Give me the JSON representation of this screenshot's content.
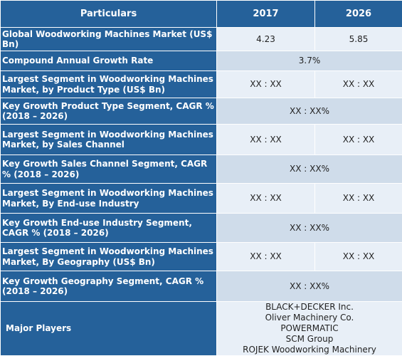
{
  "header": {
    "particulars": "Particulars",
    "year1": "2017",
    "year2": "2026"
  },
  "rows": [
    {
      "label": "Global Woodworking Machines Market (US$ Bn)",
      "v2017": "4.23",
      "v2026": "5.85"
    },
    {
      "label": "Compound Annual Growth Rate",
      "span": "3.7%"
    },
    {
      "label": "Largest Segment in Woodworking Machines Market, by Product Type (US$ Bn)",
      "v2017": "XX : XX",
      "v2026": "XX :  XX"
    },
    {
      "label": "Key Growth Product Type Segment, CAGR % (2018 – 2026)",
      "span": "XX :  XX%"
    },
    {
      "label": "Largest Segment in Woodworking Machines Market, by Sales Channel",
      "v2017": "XX : XX",
      "v2026": "XX : XX"
    },
    {
      "label": "Key Growth Sales Channel Segment, CAGR % (2018 – 2026)",
      "span": "XX : XX%"
    },
    {
      "label": "Largest Segment in Woodworking Machines Market, By End-use Industry",
      "v2017": "XX : XX",
      "v2026": "XX :  XX"
    },
    {
      "label": "Key Growth End-use Industry Segment, CAGR % (2018 – 2026)",
      "span": "XX : XX%"
    },
    {
      "label": "Largest Segment in Woodworking Machines Market, By Geography (US$ Bn)",
      "v2017": "XX : XX",
      "v2026": "XX : XX"
    },
    {
      "label": "Key Growth Geography Segment, CAGR % (2018 – 2026)",
      "span": "XX : XX%"
    }
  ],
  "major_players": {
    "label": "Major Players",
    "players": [
      "BLACK+DECKER Inc.",
      "Oliver Machinery Co.",
      "POWERMATIC",
      "SCM Group",
      "ROJEK Woodworking Machinery"
    ]
  },
  "colors": {
    "header_blue": "#25619a",
    "cell_light": "#e8eff7",
    "cell_dark": "#cfdcea"
  }
}
